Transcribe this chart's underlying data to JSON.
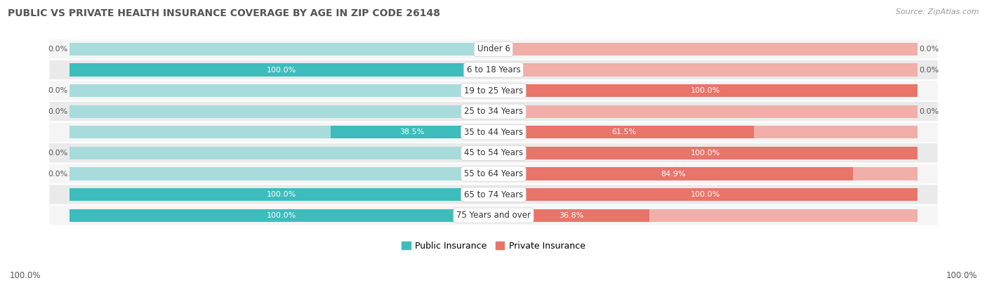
{
  "title": "PUBLIC VS PRIVATE HEALTH INSURANCE COVERAGE BY AGE IN ZIP CODE 26148",
  "source": "Source: ZipAtlas.com",
  "categories": [
    "Under 6",
    "6 to 18 Years",
    "19 to 25 Years",
    "25 to 34 Years",
    "35 to 44 Years",
    "45 to 54 Years",
    "55 to 64 Years",
    "65 to 74 Years",
    "75 Years and over"
  ],
  "public_values": [
    0.0,
    100.0,
    0.0,
    0.0,
    38.5,
    0.0,
    0.0,
    100.0,
    100.0
  ],
  "private_values": [
    0.0,
    0.0,
    100.0,
    0.0,
    61.5,
    100.0,
    84.9,
    100.0,
    36.8
  ],
  "public_color": "#3DBCBC",
  "private_color": "#E8746A",
  "public_color_light": "#A8DCDC",
  "private_color_light": "#F0AFA8",
  "row_bg_color_alt": "#EAEAEA",
  "row_bg_color_main": "#F5F5F5",
  "title_color": "#555555",
  "text_color_dark": "#444444",
  "text_color_white": "#FFFFFF",
  "text_color_outside": "#555555",
  "legend_public": "Public Insurance",
  "legend_private": "Private Insurance",
  "axis_label_left": "100.0%",
  "axis_label_right": "100.0%",
  "max_value": 100.0
}
